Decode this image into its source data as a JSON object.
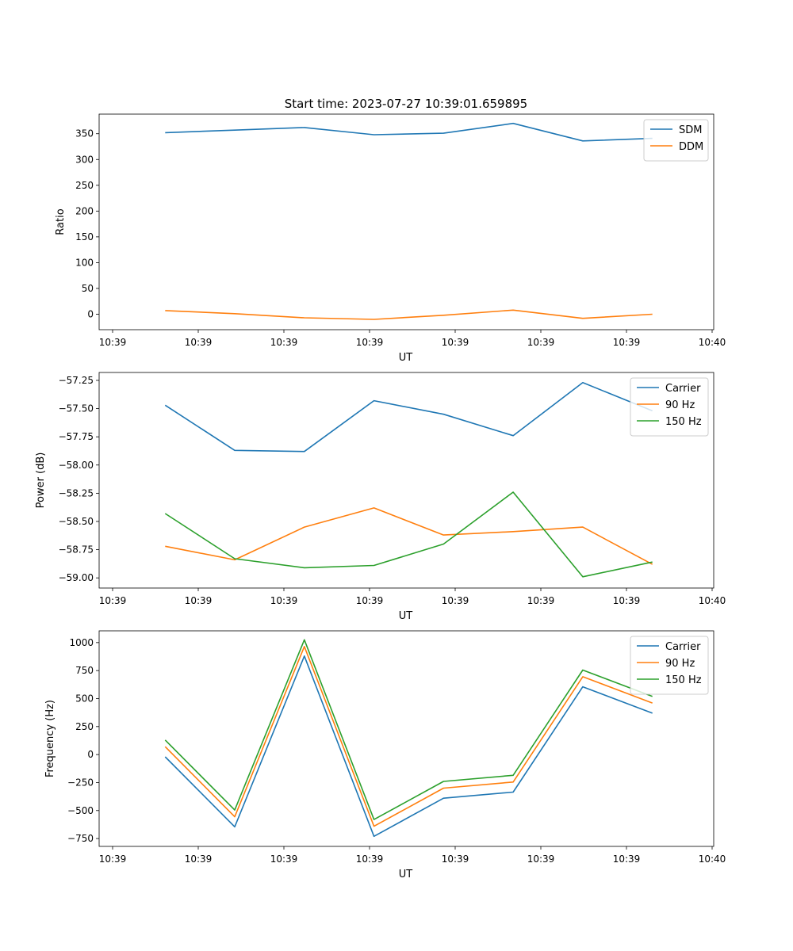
{
  "title": "Start time: 2023-07-27 10:39:01.659895",
  "chart_data": [
    {
      "type": "line",
      "xlabel": "UT",
      "ylabel": "Ratio",
      "xticklabels": [
        "10:39",
        "10:39",
        "10:39",
        "10:39",
        "10:39",
        "10:39",
        "10:39",
        "10:40"
      ],
      "yticks": [
        0,
        50,
        100,
        150,
        200,
        250,
        300,
        350
      ],
      "yticklabels": [
        "0",
        "50",
        "100",
        "150",
        "200",
        "250",
        "300",
        "350"
      ],
      "ylim": [
        -30,
        388
      ],
      "legend": "top-right",
      "series": [
        {
          "name": "SDM",
          "color": "#1f77b4",
          "values": [
            352,
            357,
            362,
            348,
            351,
            370,
            336,
            341
          ]
        },
        {
          "name": "DDM",
          "color": "#ff7f0e",
          "values": [
            7,
            1,
            -7,
            -10,
            -2,
            8,
            -8,
            0
          ]
        }
      ]
    },
    {
      "type": "line",
      "xlabel": "UT",
      "ylabel": "Power (dB)",
      "xticklabels": [
        "10:39",
        "10:39",
        "10:39",
        "10:39",
        "10:39",
        "10:39",
        "10:39",
        "10:40"
      ],
      "yticks": [
        -59.0,
        -58.75,
        -58.5,
        -58.25,
        -58.0,
        -57.75,
        -57.5,
        -57.25
      ],
      "yticklabels": [
        "−59.00",
        "−58.75",
        "−58.50",
        "−58.25",
        "−58.00",
        "−57.75",
        "−57.50",
        "−57.25"
      ],
      "ylim": [
        -59.09,
        -57.18
      ],
      "legend": "top-right",
      "series": [
        {
          "name": "Carrier",
          "color": "#1f77b4",
          "values": [
            -57.47,
            -57.87,
            -57.88,
            -57.43,
            -57.55,
            -57.74,
            -57.27,
            -57.52
          ]
        },
        {
          "name": "90 Hz",
          "color": "#ff7f0e",
          "values": [
            -58.72,
            -58.84,
            -58.55,
            -58.38,
            -58.62,
            -58.59,
            -58.55,
            -58.88
          ]
        },
        {
          "name": "150 Hz",
          "color": "#2ca02c",
          "values": [
            -58.43,
            -58.83,
            -58.91,
            -58.89,
            -58.7,
            -58.24,
            -58.99,
            -58.86
          ]
        }
      ]
    },
    {
      "type": "line",
      "xlabel": "UT",
      "ylabel": "Frequency (Hz)",
      "xticklabels": [
        "10:39",
        "10:39",
        "10:39",
        "10:39",
        "10:39",
        "10:39",
        "10:39",
        "10:40"
      ],
      "yticks": [
        -750,
        -500,
        -250,
        0,
        250,
        500,
        750,
        1000
      ],
      "yticklabels": [
        "−750",
        "−500",
        "−250",
        "0",
        "250",
        "500",
        "750",
        "1000"
      ],
      "ylim": [
        -820,
        1105
      ],
      "legend": "top-right",
      "series": [
        {
          "name": "Carrier",
          "color": "#1f77b4",
          "values": [
            -20,
            -645,
            880,
            -730,
            -390,
            -335,
            605,
            370
          ]
        },
        {
          "name": "90 Hz",
          "color": "#ff7f0e",
          "values": [
            70,
            -555,
            965,
            -640,
            -300,
            -245,
            695,
            460
          ]
        },
        {
          "name": "150 Hz",
          "color": "#2ca02c",
          "values": [
            130,
            -495,
            1025,
            -580,
            -240,
            -185,
            755,
            520
          ]
        }
      ]
    }
  ]
}
